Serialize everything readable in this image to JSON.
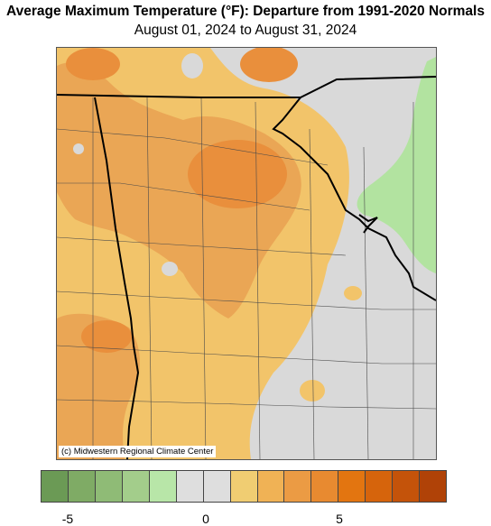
{
  "header": {
    "title": "Average Maximum Temperature (°F): Departure from 1991-2020 Normals",
    "subtitle": "August 01, 2024 to August 31, 2024"
  },
  "map": {
    "credit": "(c) Midwestern Regional Climate Center",
    "colors": {
      "no_departure_gray": "#d9d9d9",
      "orange_light": "#f2c46a",
      "orange_mid": "#eaa655",
      "orange_dark": "#e98f3c",
      "green_light": "#b2e3a0",
      "boundary": "#000000",
      "county_line": "#4a4a4a"
    }
  },
  "legend": {
    "swatches": [
      {
        "color": "#6b9a55"
      },
      {
        "color": "#7fab65"
      },
      {
        "color": "#8fbb76"
      },
      {
        "color": "#a3cd8b"
      },
      {
        "color": "#b8e6a8"
      },
      {
        "color": "#dedede"
      },
      {
        "color": "#dedede"
      },
      {
        "color": "#f0cd72"
      },
      {
        "color": "#f0b255"
      },
      {
        "color": "#eb9b44"
      },
      {
        "color": "#e88a30"
      },
      {
        "color": "#e37510"
      },
      {
        "color": "#d6640c"
      },
      {
        "color": "#c4530a"
      },
      {
        "color": "#b04207"
      }
    ],
    "ticks": [
      {
        "label": "-5"
      },
      {
        "label": "0"
      },
      {
        "label": "5"
      }
    ]
  }
}
